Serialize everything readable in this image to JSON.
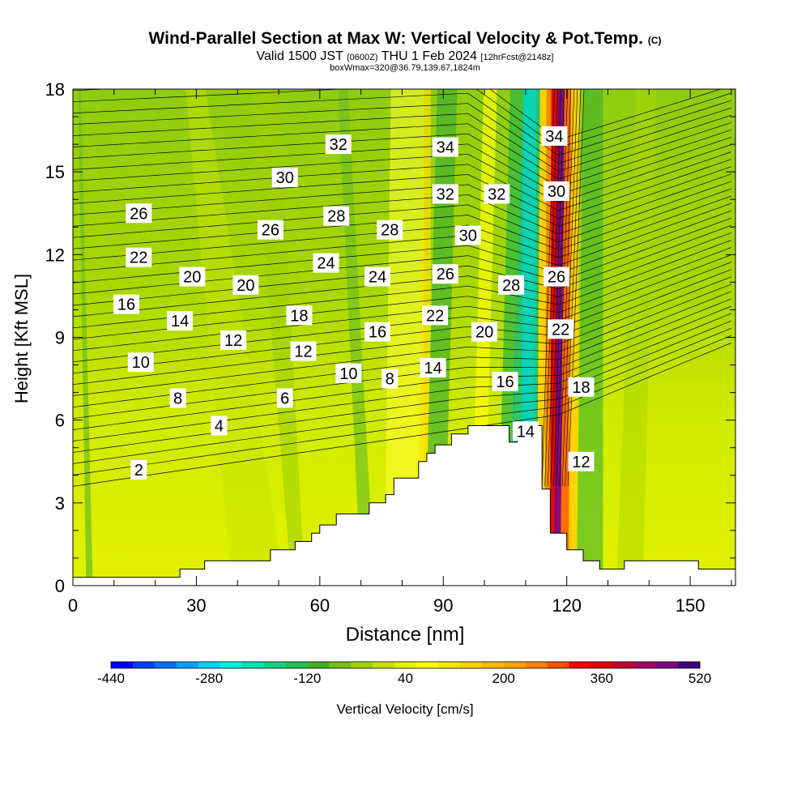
{
  "title": {
    "main": "Wind-Parallel Section at Max W: Vertical Velocity & Pot.Temp.",
    "copyright": "(C)",
    "valid_prefix": "Valid 1500 JST",
    "valid_utc": "(0600Z)",
    "valid_date": "THU 1 Feb 2024",
    "forecast": "[12hrFcst@2148z]",
    "box": "boxWmax=320@36.79,139.67,1824m"
  },
  "chart_data": {
    "type": "heatmap",
    "xlabel": "Distance [nm]",
    "ylabel": "Height [Kft MSL]",
    "xlim": [
      0,
      161
    ],
    "ylim": [
      0,
      18
    ],
    "x_ticks": [
      "0",
      "30",
      "60",
      "90",
      "120",
      "150"
    ],
    "y_ticks": [
      "0",
      "3",
      "6",
      "9",
      "12",
      "15",
      "18"
    ],
    "colorbar": {
      "label": "Vertical Velocity [cm/s]",
      "tick_labels": [
        "-440",
        "-280",
        "-120",
        "40",
        "200",
        "360",
        "520"
      ],
      "colors": [
        "#0000ff",
        "#0040ff",
        "#0070ff",
        "#00a0ff",
        "#00d0ff",
        "#00f0e0",
        "#00e0b0",
        "#10d080",
        "#20c050",
        "#40b020",
        "#70c010",
        "#a0d000",
        "#c8e000",
        "#e8f000",
        "#ffff00",
        "#ffe800",
        "#ffd000",
        "#ffb800",
        "#ffa000",
        "#ff8000",
        "#ff5000",
        "#ff0000",
        "#e00000",
        "#c00030",
        "#a00060",
        "#800080",
        "#400080"
      ]
    },
    "terrain": [
      [
        0,
        0.3
      ],
      [
        26,
        0.3
      ],
      [
        26,
        0.6
      ],
      [
        32,
        0.6
      ],
      [
        32,
        0.9
      ],
      [
        48,
        0.9
      ],
      [
        48,
        1.3
      ],
      [
        54,
        1.3
      ],
      [
        54,
        1.6
      ],
      [
        58,
        1.6
      ],
      [
        58,
        1.9
      ],
      [
        60,
        1.9
      ],
      [
        60,
        2.2
      ],
      [
        64,
        2.2
      ],
      [
        64,
        2.6
      ],
      [
        72,
        2.6
      ],
      [
        72,
        3.0
      ],
      [
        76,
        3.0
      ],
      [
        76,
        3.3
      ],
      [
        78,
        3.3
      ],
      [
        78,
        3.9
      ],
      [
        84,
        3.9
      ],
      [
        84,
        4.5
      ],
      [
        86,
        4.5
      ],
      [
        86,
        4.8
      ],
      [
        88,
        4.8
      ],
      [
        88,
        5.1
      ],
      [
        92,
        5.1
      ],
      [
        92,
        5.5
      ],
      [
        96,
        5.5
      ],
      [
        96,
        5.8
      ],
      [
        106,
        5.8
      ],
      [
        106,
        5.2
      ],
      [
        108,
        5.2
      ],
      [
        108,
        5.8
      ],
      [
        114,
        5.8
      ],
      [
        114,
        3.5
      ],
      [
        116,
        3.5
      ],
      [
        116,
        1.9
      ],
      [
        120,
        1.9
      ],
      [
        120,
        1.3
      ],
      [
        124,
        1.3
      ],
      [
        124,
        0.9
      ],
      [
        128,
        0.9
      ],
      [
        128,
        0.6
      ],
      [
        134,
        0.6
      ],
      [
        134,
        0.9
      ],
      [
        152,
        0.9
      ],
      [
        152,
        0.6
      ],
      [
        161,
        0.6
      ],
      [
        161,
        0
      ],
      [
        0,
        0
      ]
    ],
    "contour_labels": [
      {
        "text": "2",
        "x": 16,
        "y": 4.2
      },
      {
        "text": "4",
        "x": 35.5,
        "y": 5.8
      },
      {
        "text": "6",
        "x": 51.5,
        "y": 6.8
      },
      {
        "text": "8",
        "x": 25.5,
        "y": 6.8
      },
      {
        "text": "10",
        "x": 16.5,
        "y": 8.1
      },
      {
        "text": "12",
        "x": 39,
        "y": 8.9
      },
      {
        "text": "14",
        "x": 26,
        "y": 9.6
      },
      {
        "text": "16",
        "x": 13,
        "y": 10.2
      },
      {
        "text": "20",
        "x": 29,
        "y": 11.2
      },
      {
        "text": "22",
        "x": 16,
        "y": 11.9
      },
      {
        "text": "26",
        "x": 16,
        "y": 13.5
      },
      {
        "text": "20",
        "x": 42,
        "y": 10.9
      },
      {
        "text": "18",
        "x": 55,
        "y": 9.8
      },
      {
        "text": "12",
        "x": 56,
        "y": 8.5
      },
      {
        "text": "24",
        "x": 61.5,
        "y": 11.7
      },
      {
        "text": "26",
        "x": 48,
        "y": 12.9
      },
      {
        "text": "28",
        "x": 64,
        "y": 13.4
      },
      {
        "text": "30",
        "x": 51.5,
        "y": 14.8
      },
      {
        "text": "32",
        "x": 64.5,
        "y": 16.0
      },
      {
        "text": "10",
        "x": 67,
        "y": 7.7
      },
      {
        "text": "8",
        "x": 77,
        "y": 7.5
      },
      {
        "text": "16",
        "x": 74,
        "y": 9.2
      },
      {
        "text": "24",
        "x": 74,
        "y": 11.2
      },
      {
        "text": "28",
        "x": 77,
        "y": 12.9
      },
      {
        "text": "14",
        "x": 87.5,
        "y": 7.9
      },
      {
        "text": "22",
        "x": 88,
        "y": 9.8
      },
      {
        "text": "26",
        "x": 90.5,
        "y": 11.3
      },
      {
        "text": "32",
        "x": 90.5,
        "y": 14.2
      },
      {
        "text": "34",
        "x": 90.5,
        "y": 15.9
      },
      {
        "text": "20",
        "x": 100,
        "y": 9.2
      },
      {
        "text": "30",
        "x": 96,
        "y": 12.7
      },
      {
        "text": "32",
        "x": 103,
        "y": 14.2
      },
      {
        "text": "28",
        "x": 106.5,
        "y": 10.9
      },
      {
        "text": "16",
        "x": 105,
        "y": 7.4
      },
      {
        "text": "14",
        "x": 110,
        "y": 5.6
      },
      {
        "text": "12",
        "x": 123.5,
        "y": 4.5
      },
      {
        "text": "18",
        "x": 123.5,
        "y": 7.2
      },
      {
        "text": "22",
        "x": 118.5,
        "y": 9.3
      },
      {
        "text": "26",
        "x": 117.5,
        "y": 11.2
      },
      {
        "text": "30",
        "x": 117.5,
        "y": 14.3
      },
      {
        "text": "34",
        "x": 117,
        "y": 16.3
      }
    ]
  }
}
